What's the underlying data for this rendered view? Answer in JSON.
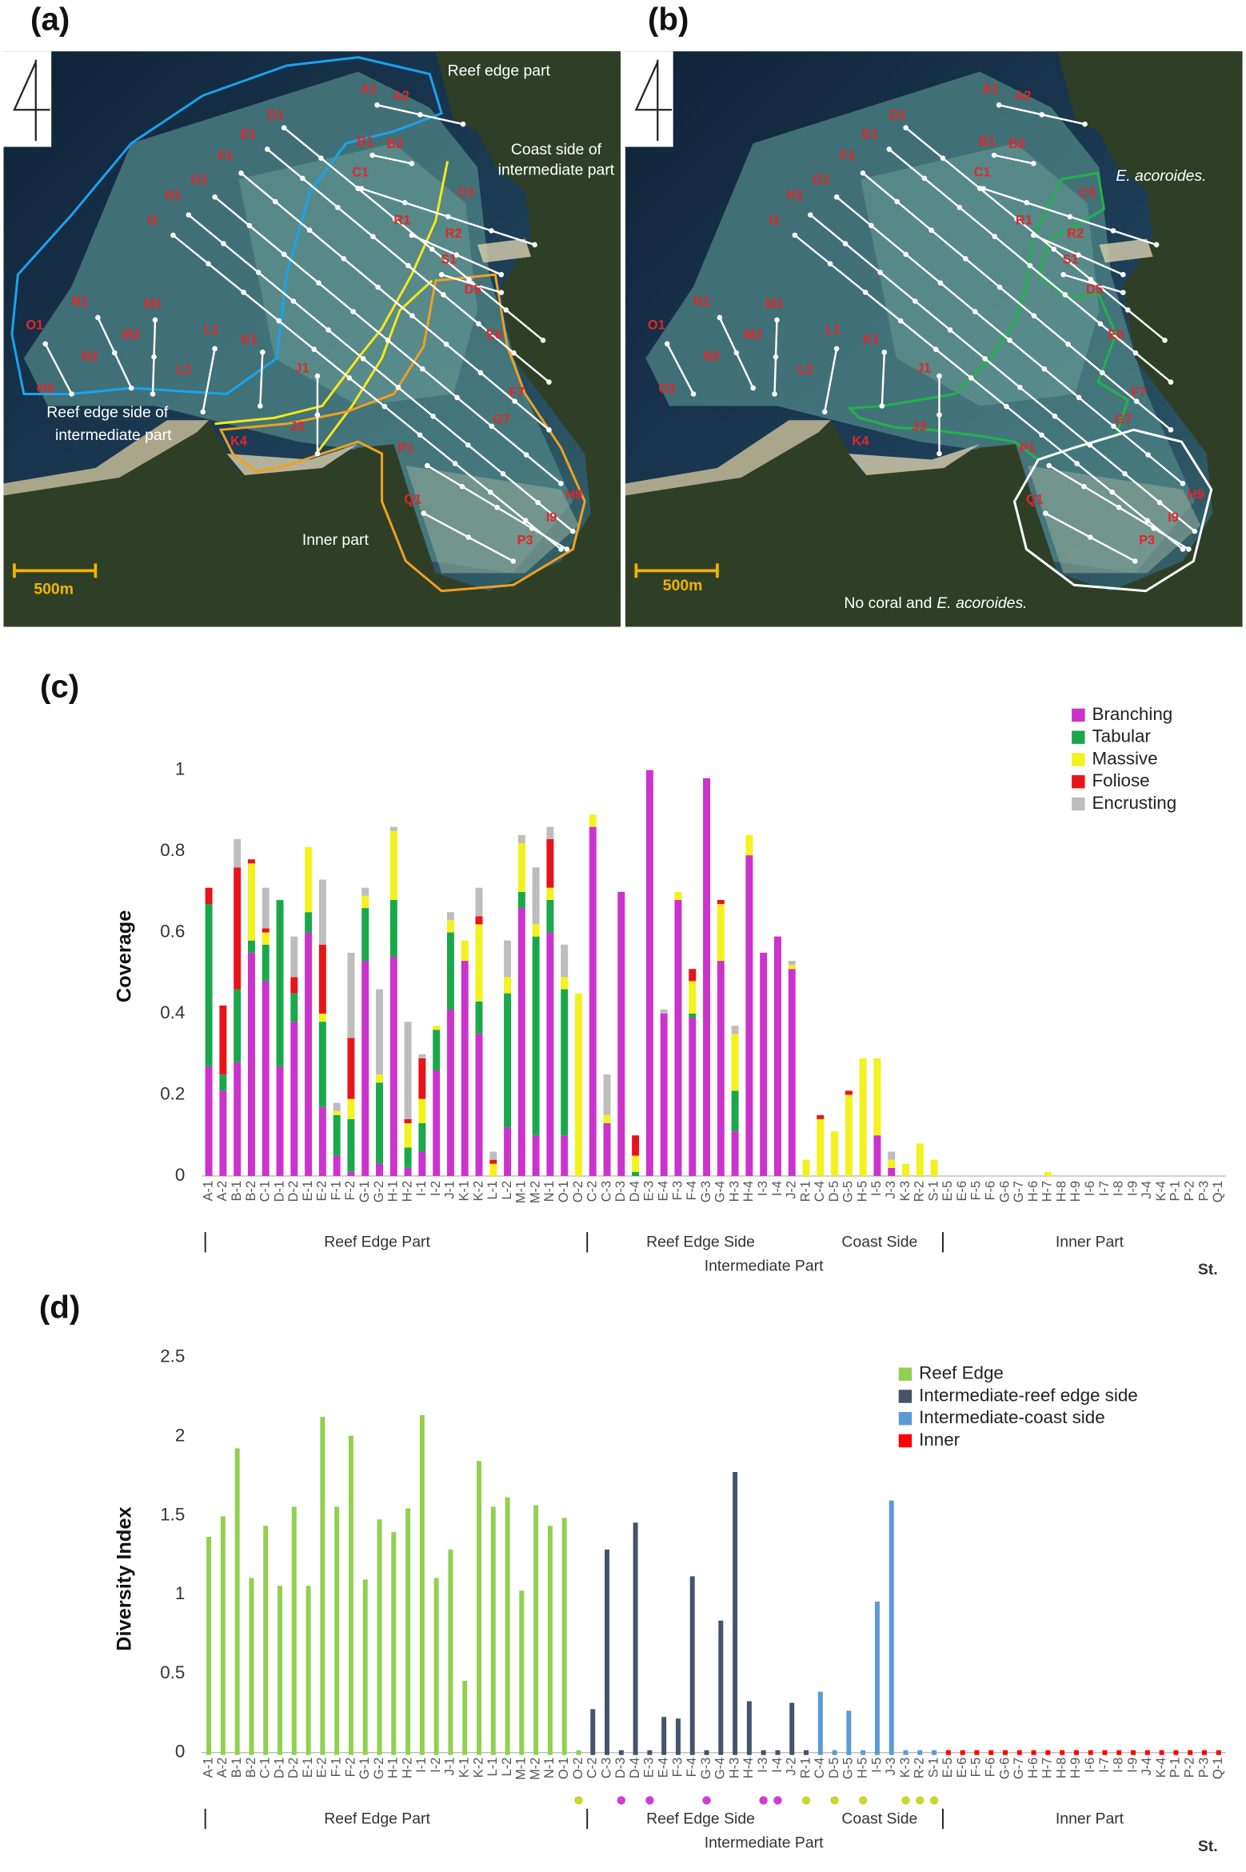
{
  "maps": [
    {
      "panel_label": "(a)",
      "region_labels": [
        "Reef edge part",
        "Coast side of",
        "intermediate part",
        "Reef edge side of",
        "intermediate part",
        "Inner part"
      ],
      "scale_label": "500m"
    },
    {
      "panel_label": "(b)",
      "species_label": "E. acoroides.",
      "note_prefix": "No coral and",
      "note_species": "E. acoroides.",
      "scale_label": "500m"
    }
  ],
  "stations": [
    "A1",
    "A2",
    "D1",
    "E1",
    "B1",
    "B2",
    "F1",
    "C1",
    "G1",
    "C3",
    "H1",
    "R1",
    "I1",
    "R2",
    "S1",
    "D5",
    "N1",
    "M1",
    "E6",
    "O1",
    "L1",
    "K1",
    "M2",
    "N2",
    "L2",
    "J1",
    "F7",
    "O2",
    "G7",
    "J3",
    "K4",
    "P1",
    "H9",
    "Q1",
    "I9",
    "P3"
  ],
  "chart_data": [
    {
      "type": "bar",
      "stacked": true,
      "panel_label": "(c)",
      "y_label": "Coverage",
      "legend": "top-right",
      "ylim": [
        0,
        1.2
      ],
      "yticks": [
        0,
        0.2,
        0.4,
        0.6,
        0.8,
        1
      ],
      "group_labels": [
        "Reef Edge Part",
        "Reef Edge Side",
        "Coast Side",
        "Inner Part"
      ],
      "supergroup_label": "Intermediate Part",
      "x_label": "St.",
      "categories": [
        "A-1",
        "A-2",
        "B-1",
        "B-2",
        "C-1",
        "D-1",
        "D-2",
        "E-1",
        "E-2",
        "F-1",
        "F-2",
        "G-1",
        "G-2",
        "H-1",
        "H-2",
        "I-1",
        "I-2",
        "J-1",
        "K-1",
        "K-2",
        "L-1",
        "L-2",
        "M-1",
        "M-2",
        "N-1",
        "O-1",
        "O-2",
        "C-2",
        "C-3",
        "D-3",
        "D-4",
        "E-3",
        "E-4",
        "F-3",
        "F-4",
        "G-3",
        "G-4",
        "H-3",
        "H-4",
        "I-3",
        "I-4",
        "J-2",
        "R-1",
        "C-4",
        "D-5",
        "G-5",
        "H-5",
        "I-5",
        "J-3",
        "K-3",
        "R-2",
        "S-1",
        "E-5",
        "E-6",
        "F-5",
        "F-6",
        "G-6",
        "G-7",
        "H-6",
        "H-7",
        "H-8",
        "H-9",
        "I-6",
        "I-7",
        "I-8",
        "I-9",
        "J-4",
        "K-4",
        "P-1",
        "P-2",
        "P-3",
        "Q-1"
      ],
      "series": [
        {
          "name": "Branching",
          "color": "#cc33cc",
          "values": [
            0.27,
            0.21,
            0.28,
            0.55,
            0.48,
            0.27,
            0.38,
            0.6,
            0.17,
            0.05,
            0.01,
            0.53,
            0.03,
            0.54,
            0.02,
            0.06,
            0.26,
            0.41,
            0.53,
            0.35,
            0,
            0.12,
            0.66,
            0.1,
            0.6,
            0.1,
            0,
            0.86,
            0.13,
            0.7,
            0,
            1,
            0.4,
            0.68,
            0.39,
            0.98,
            0.53,
            0.11,
            0.79,
            0.55,
            0.59,
            0.51,
            0,
            0,
            0,
            0,
            0,
            0.1,
            0.02,
            0,
            0,
            0,
            0,
            0,
            0,
            0,
            0,
            0,
            0,
            0,
            0,
            0,
            0,
            0,
            0,
            0,
            0,
            0,
            0,
            0,
            0,
            0
          ]
        },
        {
          "name": "Tabular",
          "color": "#1aa84b",
          "values": [
            0.4,
            0.04,
            0.18,
            0.03,
            0.09,
            0.41,
            0.07,
            0.05,
            0.21,
            0.1,
            0.13,
            0.13,
            0.2,
            0.14,
            0.05,
            0.07,
            0.1,
            0.19,
            0,
            0.08,
            0,
            0.33,
            0.04,
            0.49,
            0.08,
            0.36,
            0,
            0,
            0,
            0,
            0.01,
            0,
            0,
            0,
            0.01,
            0,
            0,
            0.1,
            0,
            0,
            0,
            0,
            0,
            0,
            0,
            0,
            0,
            0,
            0,
            0,
            0,
            0,
            0,
            0,
            0,
            0,
            0,
            0,
            0,
            0,
            0,
            0,
            0,
            0,
            0,
            0,
            0,
            0,
            0,
            0,
            0,
            0
          ]
        },
        {
          "name": "Massive",
          "color": "#f2f21c",
          "values": [
            0,
            0,
            0,
            0.19,
            0.03,
            0,
            0,
            0.16,
            0.02,
            0.01,
            0.05,
            0.03,
            0.02,
            0.17,
            0.06,
            0.06,
            0.01,
            0.03,
            0.05,
            0.19,
            0.03,
            0.04,
            0.12,
            0.03,
            0.03,
            0.03,
            0.45,
            0.03,
            0.02,
            0,
            0.04,
            0,
            0,
            0.02,
            0.08,
            0,
            0.14,
            0.14,
            0.05,
            0,
            0,
            0.01,
            0.04,
            0.14,
            0.11,
            0.2,
            0.29,
            0.19,
            0.02,
            0.03,
            0.08,
            0.04,
            0,
            0,
            0,
            0,
            0,
            0,
            0,
            0.01,
            0,
            0,
            0,
            0,
            0,
            0,
            0,
            0,
            0,
            0,
            0,
            0
          ]
        },
        {
          "name": "Foliose",
          "color": "#e8141a",
          "values": [
            0.04,
            0.17,
            0.3,
            0.01,
            0.01,
            0,
            0.04,
            0,
            0.17,
            0,
            0.15,
            0,
            0,
            0,
            0.01,
            0.1,
            0,
            0,
            0,
            0.02,
            0.01,
            0,
            0,
            0,
            0.12,
            0,
            0,
            0,
            0,
            0,
            0.05,
            0,
            0,
            0,
            0.03,
            0,
            0.01,
            0,
            0,
            0,
            0,
            0,
            0,
            0.01,
            0,
            0.01,
            0,
            0,
            0,
            0,
            0,
            0,
            0,
            0,
            0,
            0,
            0,
            0,
            0,
            0,
            0,
            0,
            0,
            0,
            0,
            0,
            0,
            0,
            0,
            0,
            0,
            0
          ]
        },
        {
          "name": "Encrusting",
          "color": "#bdbdbd",
          "values": [
            0,
            0,
            0.07,
            0,
            0.1,
            0,
            0.1,
            0,
            0.16,
            0.02,
            0.21,
            0.02,
            0.21,
            0.01,
            0.24,
            0.01,
            0,
            0.02,
            0,
            0.07,
            0.02,
            0.09,
            0.02,
            0.14,
            0.03,
            0.08,
            0,
            0,
            0.1,
            0,
            0,
            0,
            0.01,
            0,
            0,
            0,
            0,
            0.02,
            0,
            0,
            0,
            0.01,
            0,
            0,
            0,
            0,
            0,
            0,
            0.02,
            0,
            0,
            0,
            0,
            0,
            0,
            0,
            0,
            0,
            0,
            0,
            0,
            0,
            0,
            0,
            0,
            0,
            0,
            0,
            0,
            0,
            0,
            0
          ]
        }
      ]
    },
    {
      "type": "bar",
      "stacked": false,
      "panel_label": "(d)",
      "y_label": "Diversity Index",
      "legend": "top-right",
      "ylim": [
        0,
        2.5
      ],
      "yticks": [
        0,
        0.5,
        1,
        1.5,
        2,
        2.5
      ],
      "group_labels": [
        "Reef Edge Part",
        "Reef Edge Side",
        "Coast Side",
        "Inner Part"
      ],
      "supergroup_label": "Intermediate Part",
      "x_label": "St.",
      "categories": [
        "A-1",
        "A-2",
        "B-1",
        "B-2",
        "C-1",
        "D-1",
        "D-2",
        "E-1",
        "E-2",
        "F-1",
        "F-2",
        "G-1",
        "G-2",
        "H-1",
        "H-2",
        "I-1",
        "I-2",
        "J-1",
        "K-1",
        "K-2",
        "L-1",
        "L-2",
        "M-1",
        "M-2",
        "N-1",
        "O-1",
        "O-2",
        "C-2",
        "C-3",
        "D-3",
        "D-4",
        "E-3",
        "E-4",
        "F-3",
        "F-4",
        "G-3",
        "G-4",
        "H-3",
        "H-4",
        "I-3",
        "I-4",
        "J-2",
        "R-1",
        "C-4",
        "D-5",
        "G-5",
        "H-5",
        "I-5",
        "J-3",
        "K-3",
        "R-2",
        "S-1",
        "E-5",
        "E-6",
        "F-5",
        "F-6",
        "G-6",
        "G-7",
        "H-6",
        "H-7",
        "H-8",
        "H-9",
        "I-6",
        "I-7",
        "I-8",
        "I-9",
        "J-4",
        "K-4",
        "P-1",
        "P-2",
        "P-3",
        "Q-1"
      ],
      "marker_colors": [
        null,
        null,
        null,
        null,
        null,
        null,
        null,
        null,
        null,
        null,
        null,
        null,
        null,
        null,
        null,
        null,
        null,
        null,
        null,
        null,
        null,
        null,
        null,
        null,
        null,
        null,
        "#c8d62e",
        null,
        null,
        "#d23bd2",
        null,
        "#d23bd2",
        null,
        null,
        null,
        "#d23bd2",
        null,
        null,
        null,
        "#d23bd2",
        "#d23bd2",
        null,
        "#c8d62e",
        null,
        "#c8d62e",
        null,
        "#c8d62e",
        null,
        null,
        "#c8d62e",
        "#c8d62e",
        "#c8d62e",
        null,
        null,
        null,
        null,
        null,
        null,
        null,
        null,
        null,
        null,
        null,
        null,
        null,
        null,
        null,
        null,
        null,
        null,
        null,
        null
      ],
      "series": [
        {
          "name": "Reef Edge",
          "color": "#92d050",
          "values": [
            1.35,
            1.48,
            1.91,
            1.09,
            1.42,
            1.04,
            1.54,
            1.04,
            2.11,
            1.54,
            1.99,
            1.08,
            1.46,
            1.38,
            1.53,
            2.12,
            1.09,
            1.27,
            0.44,
            1.83,
            1.54,
            1.6,
            1.01,
            1.55,
            1.42,
            1.47,
            0,
            null,
            null,
            null,
            null,
            null,
            null,
            null,
            null,
            null,
            null,
            null,
            null,
            null,
            null,
            null,
            null,
            null,
            null,
            null,
            null,
            null,
            null,
            null,
            null,
            null,
            null,
            null,
            null,
            null,
            null,
            null,
            null,
            null,
            null,
            null,
            null,
            null,
            null,
            null,
            null,
            null,
            null,
            null,
            null,
            null
          ]
        },
        {
          "name": "Intermediate-reef edge side",
          "color": "#44546a",
          "values": [
            null,
            null,
            null,
            null,
            null,
            null,
            null,
            null,
            null,
            null,
            null,
            null,
            null,
            null,
            null,
            null,
            null,
            null,
            null,
            null,
            null,
            null,
            null,
            null,
            null,
            null,
            null,
            0.26,
            1.27,
            0,
            1.44,
            0,
            0.21,
            0.2,
            1.1,
            0,
            0.82,
            1.76,
            0.31,
            0,
            0,
            0.3,
            0,
            null,
            null,
            null,
            null,
            null,
            null,
            null,
            null,
            null,
            null,
            null,
            null,
            null,
            null,
            null,
            null,
            null,
            null,
            null,
            null,
            null,
            null,
            null,
            null,
            null,
            null,
            null,
            null,
            null
          ]
        },
        {
          "name": "Intermediate-coast side",
          "color": "#5b9bd5",
          "values": [
            null,
            null,
            null,
            null,
            null,
            null,
            null,
            null,
            null,
            null,
            null,
            null,
            null,
            null,
            null,
            null,
            null,
            null,
            null,
            null,
            null,
            null,
            null,
            null,
            null,
            null,
            null,
            null,
            null,
            null,
            null,
            null,
            null,
            null,
            null,
            null,
            null,
            null,
            null,
            null,
            null,
            null,
            null,
            0.37,
            0,
            0.25,
            0,
            0.94,
            1.58,
            0,
            0,
            0,
            null,
            null,
            null,
            null,
            null,
            null,
            null,
            null,
            null,
            null,
            null,
            null,
            null,
            null,
            null,
            null,
            null,
            null,
            null,
            null
          ]
        },
        {
          "name": "Inner",
          "color": "#ff0000",
          "values": [
            null,
            null,
            null,
            null,
            null,
            null,
            null,
            null,
            null,
            null,
            null,
            null,
            null,
            null,
            null,
            null,
            null,
            null,
            null,
            null,
            null,
            null,
            null,
            null,
            null,
            null,
            null,
            null,
            null,
            null,
            null,
            null,
            null,
            null,
            null,
            null,
            null,
            null,
            null,
            null,
            null,
            null,
            null,
            null,
            null,
            null,
            null,
            null,
            null,
            null,
            null,
            null,
            0,
            0,
            0,
            0,
            0,
            0,
            0,
            0,
            0,
            0,
            0,
            0,
            0,
            0,
            0,
            0,
            0,
            0,
            0,
            0
          ]
        }
      ]
    }
  ]
}
